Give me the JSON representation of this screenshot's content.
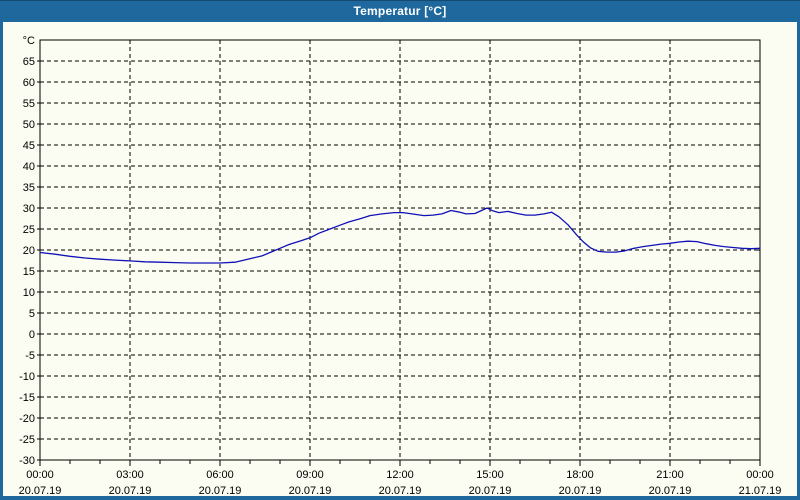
{
  "window": {
    "title": "Temperatur [°C]"
  },
  "colors": {
    "titlebar_bg": "#1e689e",
    "titlebar_text": "#ffffff",
    "window_border": "#1e689e",
    "content_bg": "#fbfdf2",
    "axis": "#000000",
    "grid": "#000000",
    "line": "#1011b6",
    "label": "#000000"
  },
  "chart_data": {
    "type": "line",
    "title": "Temperatur [°C]",
    "y_unit_label": "°C",
    "ylim": [
      -30,
      70
    ],
    "ytick_step": 5,
    "ytick_labels": [
      "65",
      "60",
      "55",
      "50",
      "45",
      "40",
      "35",
      "30",
      "25",
      "20",
      "15",
      "10",
      "5",
      "0",
      "-5",
      "-10",
      "-15",
      "-20",
      "-25",
      "-30"
    ],
    "xlim_hours": [
      0,
      24
    ],
    "x_minor_tick_hours": 1,
    "x_major_ticks": [
      {
        "hour": 0,
        "time": "00:00",
        "date": "20.07.19"
      },
      {
        "hour": 3,
        "time": "03:00",
        "date": "20.07.19"
      },
      {
        "hour": 6,
        "time": "06:00",
        "date": "20.07.19"
      },
      {
        "hour": 9,
        "time": "09:00",
        "date": "20.07.19"
      },
      {
        "hour": 12,
        "time": "12:00",
        "date": "20.07.19"
      },
      {
        "hour": 15,
        "time": "15:00",
        "date": "20.07.19"
      },
      {
        "hour": 18,
        "time": "18:00",
        "date": "20.07.19"
      },
      {
        "hour": 21,
        "time": "21:00",
        "date": "20.07.19"
      },
      {
        "hour": 24,
        "time": "00:00",
        "date": "21.07.19"
      }
    ],
    "grid": true,
    "legend": "none",
    "series": [
      {
        "name": "Temperatur",
        "color": "#1011b6",
        "points_hour_degC": [
          [
            0,
            19.4
          ],
          [
            0.5,
            19.0
          ],
          [
            1,
            18.5
          ],
          [
            1.5,
            18.1
          ],
          [
            2,
            17.8
          ],
          [
            2.5,
            17.6
          ],
          [
            3,
            17.4
          ],
          [
            3.5,
            17.2
          ],
          [
            4,
            17.1
          ],
          [
            4.5,
            17.0
          ],
          [
            5,
            16.9
          ],
          [
            5.5,
            16.9
          ],
          [
            6,
            16.9
          ],
          [
            6.5,
            17.1
          ],
          [
            6.8,
            17.6
          ],
          [
            7.1,
            18.1
          ],
          [
            7.4,
            18.6
          ],
          [
            7.7,
            19.5
          ],
          [
            8,
            20.4
          ],
          [
            8.3,
            21.3
          ],
          [
            8.7,
            22.2
          ],
          [
            9,
            22.9
          ],
          [
            9.3,
            24.0
          ],
          [
            9.7,
            25.1
          ],
          [
            10,
            25.9
          ],
          [
            10.3,
            26.7
          ],
          [
            10.7,
            27.5
          ],
          [
            11,
            28.2
          ],
          [
            11.4,
            28.6
          ],
          [
            11.8,
            28.9
          ],
          [
            12.1,
            28.9
          ],
          [
            12.4,
            28.6
          ],
          [
            12.8,
            28.2
          ],
          [
            13.1,
            28.3
          ],
          [
            13.4,
            28.6
          ],
          [
            13.7,
            29.4
          ],
          [
            14,
            29.0
          ],
          [
            14.2,
            28.6
          ],
          [
            14.5,
            28.7
          ],
          [
            14.9,
            30.0
          ],
          [
            15.1,
            29.3
          ],
          [
            15.3,
            28.9
          ],
          [
            15.6,
            29.2
          ],
          [
            15.9,
            28.7
          ],
          [
            16.2,
            28.3
          ],
          [
            16.5,
            28.3
          ],
          [
            16.8,
            28.6
          ],
          [
            17.05,
            29.0
          ],
          [
            17.3,
            27.9
          ],
          [
            17.6,
            26.0
          ],
          [
            17.9,
            23.5
          ],
          [
            18.1,
            22.0
          ],
          [
            18.35,
            20.5
          ],
          [
            18.6,
            19.7
          ],
          [
            18.9,
            19.5
          ],
          [
            19.2,
            19.5
          ],
          [
            19.5,
            19.8
          ],
          [
            19.8,
            20.4
          ],
          [
            20.1,
            20.8
          ],
          [
            20.4,
            21.1
          ],
          [
            20.7,
            21.4
          ],
          [
            21,
            21.6
          ],
          [
            21.3,
            21.9
          ],
          [
            21.6,
            22.1
          ],
          [
            21.9,
            22.0
          ],
          [
            22.2,
            21.5
          ],
          [
            22.5,
            21.1
          ],
          [
            22.8,
            20.8
          ],
          [
            23.1,
            20.6
          ],
          [
            23.4,
            20.4
          ],
          [
            23.7,
            20.3
          ],
          [
            24,
            20.4
          ]
        ]
      }
    ]
  }
}
